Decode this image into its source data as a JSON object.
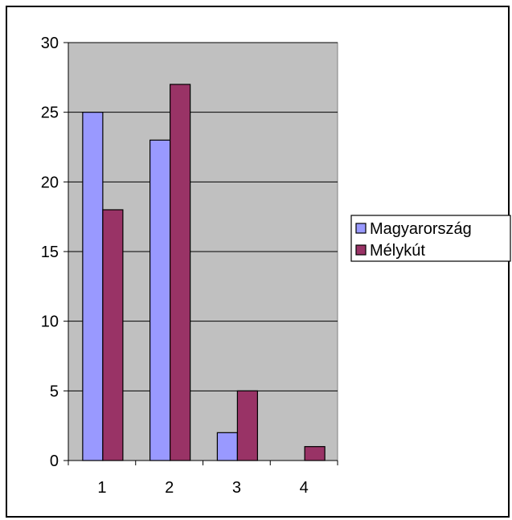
{
  "chart_data": {
    "type": "bar",
    "categories": [
      "1",
      "2",
      "3",
      "4"
    ],
    "series": [
      {
        "name": "Magyarország",
        "values": [
          25,
          23,
          2,
          0
        ],
        "color": "#9999ff"
      },
      {
        "name": "Mélykút",
        "values": [
          18,
          27,
          5,
          1
        ],
        "color": "#993366"
      }
    ],
    "ylim": [
      0,
      30
    ],
    "yticks": [
      0,
      5,
      10,
      15,
      20,
      25,
      30
    ],
    "grid": true,
    "plot_background": "#c0c0c0",
    "legend_position": "right"
  }
}
